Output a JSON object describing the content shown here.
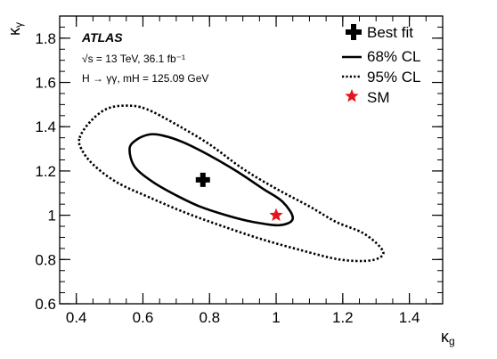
{
  "chart_data": {
    "type": "contour",
    "xlabel": "κ",
    "xlabel_sub": "g",
    "ylabel": "κ",
    "ylabel_sub": "γ",
    "xlim": [
      0.35,
      1.5
    ],
    "ylim": [
      0.6,
      1.9
    ],
    "x_ticks": [
      0.4,
      0.6,
      0.8,
      1.0,
      1.2,
      1.4
    ],
    "x_tick_labels": [
      "0.4",
      "0.6",
      "0.8",
      "1",
      "1.2",
      "1.4"
    ],
    "y_ticks": [
      0.6,
      0.8,
      1.0,
      1.2,
      1.4,
      1.6,
      1.8
    ],
    "y_tick_labels": [
      "0.6",
      "0.8",
      "1",
      "1.2",
      "1.4",
      "1.6",
      "1.8"
    ],
    "annotations": {
      "experiment": "ATLAS",
      "energy_line": "√s = 13 TeV, 36.1 fb⁻¹",
      "process_line": "H → γγ, mH = 125.09 GeV"
    },
    "legend": {
      "placement": "top-right",
      "entries": [
        {
          "label": "Best fit",
          "marker": "cross"
        },
        {
          "label": "68% CL",
          "marker": "solid-line"
        },
        {
          "label": "95% CL",
          "marker": "dotted-line"
        },
        {
          "label": "SM",
          "marker": "star",
          "color": "#e8141c"
        }
      ]
    },
    "best_fit": {
      "x": 0.78,
      "y": 1.16
    },
    "sm_point": {
      "x": 1.0,
      "y": 1.0
    },
    "contours": [
      {
        "name": "68% CL",
        "style": "solid",
        "points": [
          [
            0.56,
            1.3
          ],
          [
            0.58,
            1.34
          ],
          [
            0.62,
            1.365
          ],
          [
            0.66,
            1.36
          ],
          [
            0.72,
            1.33
          ],
          [
            0.8,
            1.27
          ],
          [
            0.88,
            1.2
          ],
          [
            0.96,
            1.12
          ],
          [
            1.02,
            1.06
          ],
          [
            1.05,
            0.985
          ],
          [
            1.01,
            0.955
          ],
          [
            0.93,
            0.97
          ],
          [
            0.85,
            1.0
          ],
          [
            0.77,
            1.04
          ],
          [
            0.7,
            1.09
          ],
          [
            0.63,
            1.15
          ],
          [
            0.575,
            1.22
          ]
        ]
      },
      {
        "name": "95% CL",
        "style": "dotted",
        "points": [
          [
            0.41,
            1.35
          ],
          [
            0.44,
            1.42
          ],
          [
            0.49,
            1.48
          ],
          [
            0.55,
            1.495
          ],
          [
            0.61,
            1.48
          ],
          [
            0.7,
            1.41
          ],
          [
            0.8,
            1.32
          ],
          [
            0.9,
            1.21
          ],
          [
            1.0,
            1.12
          ],
          [
            1.1,
            1.04
          ],
          [
            1.18,
            0.97
          ],
          [
            1.26,
            0.92
          ],
          [
            1.31,
            0.86
          ],
          [
            1.32,
            0.82
          ],
          [
            1.28,
            0.795
          ],
          [
            1.19,
            0.8
          ],
          [
            1.08,
            0.84
          ],
          [
            0.96,
            0.89
          ],
          [
            0.84,
            0.95
          ],
          [
            0.73,
            1.01
          ],
          [
            0.62,
            1.08
          ],
          [
            0.52,
            1.15
          ],
          [
            0.45,
            1.23
          ],
          [
            0.415,
            1.3
          ]
        ]
      }
    ]
  }
}
